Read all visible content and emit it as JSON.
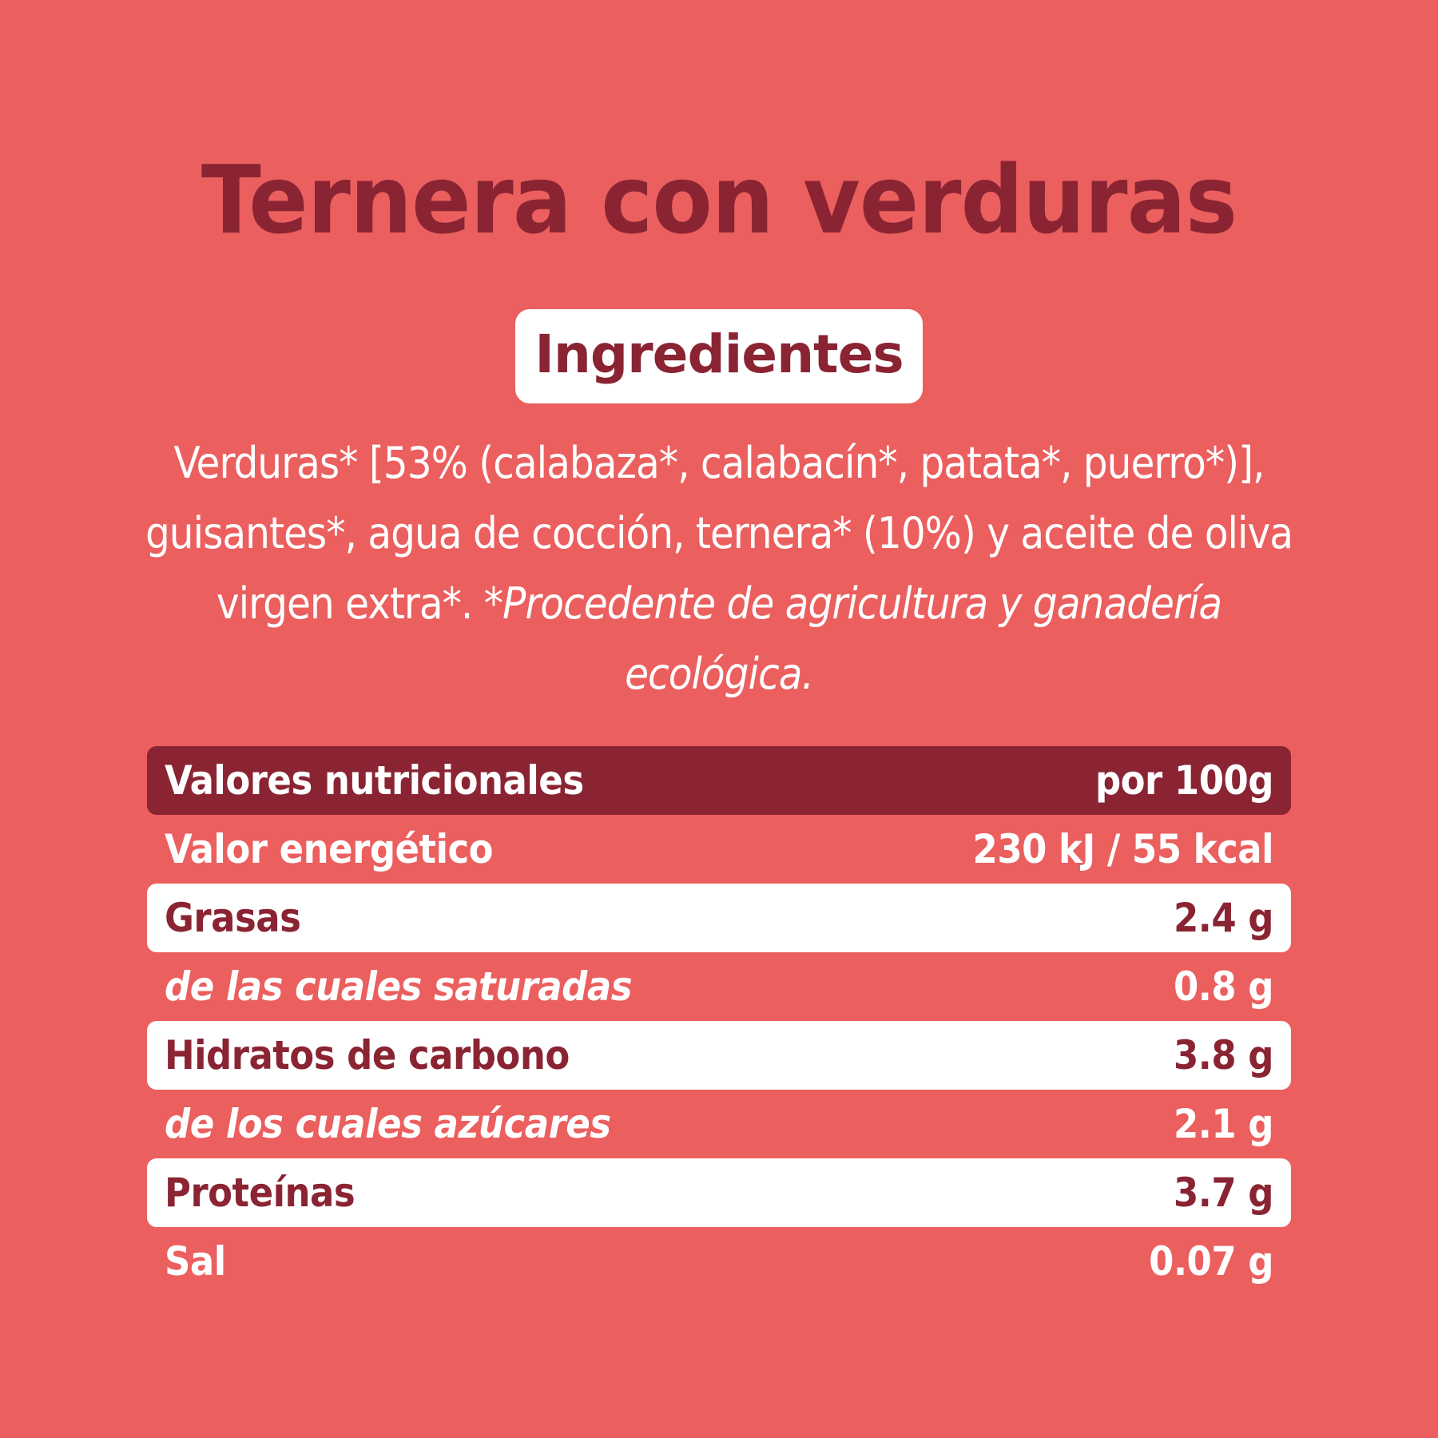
{
  "title": "Ternera con verduras",
  "ingredients_badge": "Ingredientes",
  "ingredients": {
    "text": "Verduras* [53% (calabaza*, calabacín*, patata*, puerro*)], guisantes*, agua de cocción, ternera* (10%) y aceite de oliva virgen extra*.",
    "note": "*Procedente de agricultura y ganadería ecológica."
  },
  "nutrition": {
    "header": {
      "label": "Valores nutricionales",
      "value": "por 100g"
    },
    "rows": [
      {
        "label": "Valor energético",
        "value": "230 kJ / 55 kcal",
        "style": "plain"
      },
      {
        "label": "Grasas",
        "value": "2.4 g",
        "style": "white"
      },
      {
        "label": "de las cuales saturadas",
        "value": "0.8 g",
        "style": "sub"
      },
      {
        "label": "Hidratos de carbono",
        "value": "3.8 g",
        "style": "white"
      },
      {
        "label": "de los cuales azúcares",
        "value": "2.1 g",
        "style": "sub"
      },
      {
        "label": "Proteínas",
        "value": "3.7 g",
        "style": "white"
      },
      {
        "label": "Sal",
        "value": "0.07 g",
        "style": "plain"
      }
    ]
  },
  "colors": {
    "background": "#EB5F5F",
    "accent": "#8A2433",
    "white": "#FFFFFF"
  }
}
